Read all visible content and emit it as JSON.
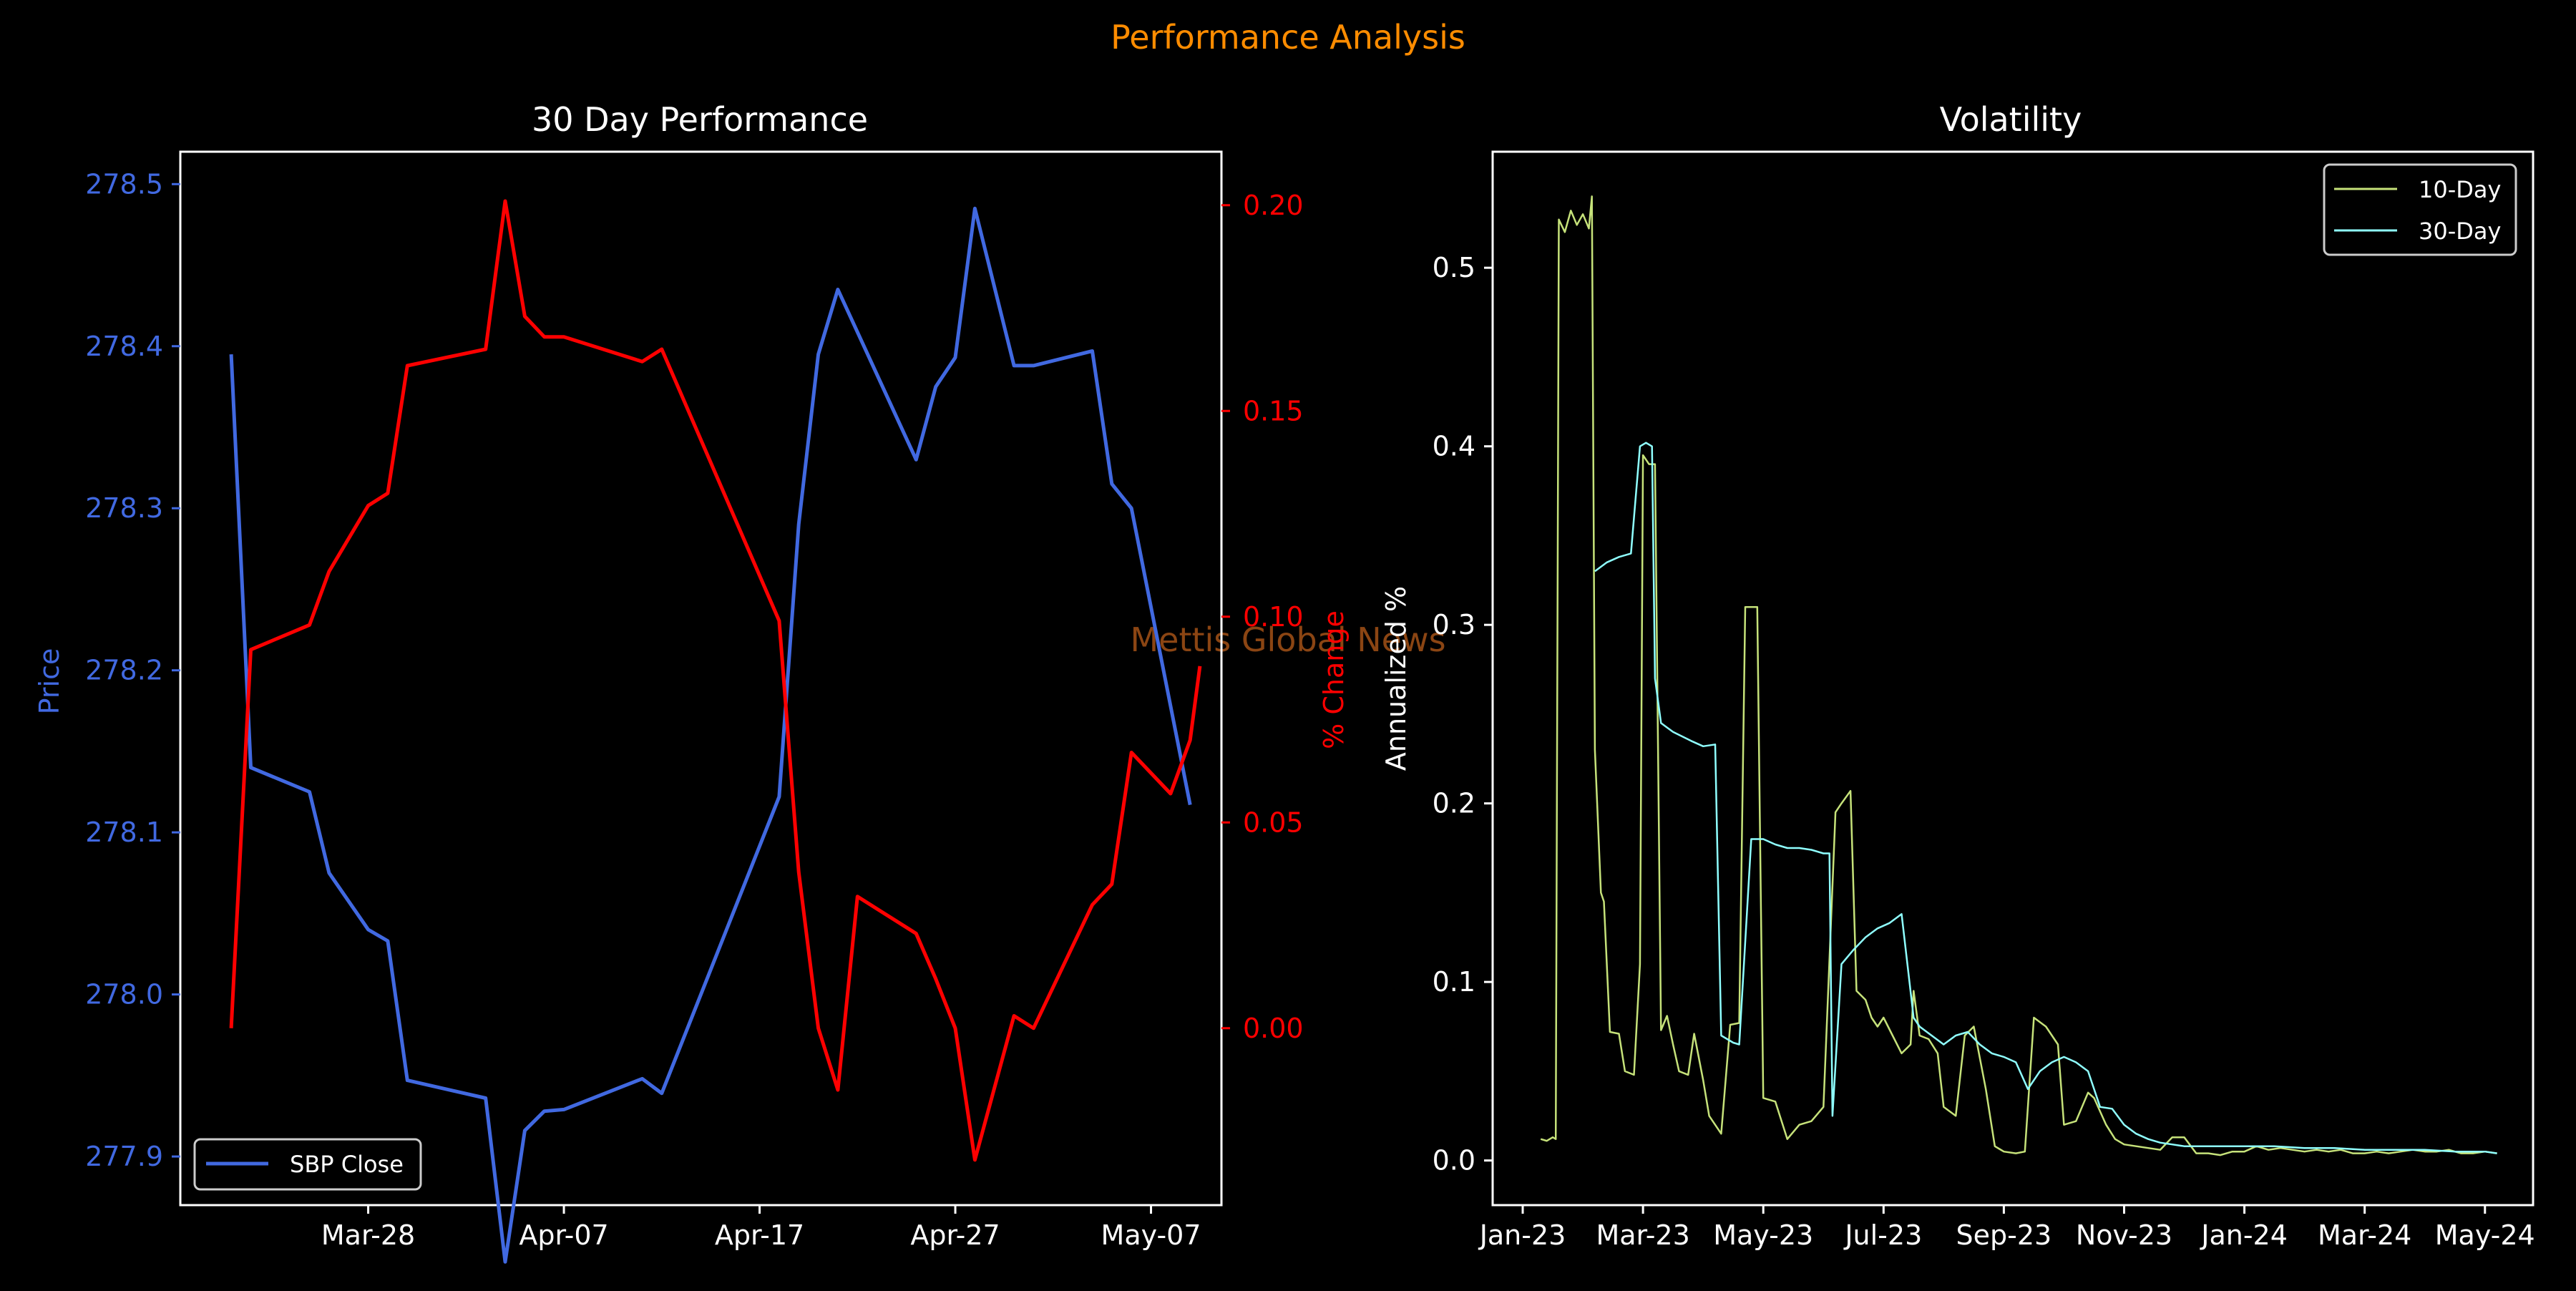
{
  "figure": {
    "title": "Performance Analysis",
    "watermark": "Mettis Global News",
    "title_color": "#ff8c00",
    "watermark_color": "#8b4513"
  },
  "chart_data": [
    {
      "type": "line",
      "title": "30 Day Performance",
      "xlabel": "",
      "ylabel": "Price",
      "ylabel_right": "% Change",
      "x_ticks": [
        "Mar-28",
        "Apr-07",
        "Apr-17",
        "Apr-27",
        "May-07"
      ],
      "y_ticks_left": [
        "277.9",
        "278.0",
        "278.1",
        "278.2",
        "278.3",
        "278.4",
        "278.5"
      ],
      "y_ticks_right": [
        "0.00",
        "0.05",
        "0.10",
        "0.15",
        "0.20"
      ],
      "ylim": [
        277.87,
        278.52
      ],
      "ylim_right": [
        -0.043,
        0.213
      ],
      "xlim": [
        -4.6,
        48.6
      ],
      "grid": false,
      "legend_position": "lower-left",
      "colors": {
        "price": "#4169e1",
        "pct": "#ff0000"
      },
      "series": [
        {
          "name": "SBP Close",
          "axis": "left",
          "color": "#4169e1",
          "x": [
            -2,
            -1,
            2,
            3,
            5,
            6,
            7,
            11,
            12,
            13,
            14,
            15,
            19,
            20,
            26,
            27,
            28,
            29,
            33,
            34,
            35,
            36,
            38,
            39,
            42,
            43,
            44,
            47
          ],
          "values": [
            278.395,
            278.14,
            278.125,
            278.075,
            278.04,
            278.033,
            277.947,
            277.936,
            277.835,
            277.916,
            277.928,
            277.929,
            277.948,
            277.939,
            278.122,
            278.29,
            278.395,
            278.435,
            278.33,
            278.375,
            278.393,
            278.485,
            278.388,
            278.388,
            278.397,
            278.315,
            278.3,
            278.117
          ]
        },
        {
          "name": "% Change",
          "axis": "right",
          "color": "#ff0000",
          "x": [
            -2,
            -1,
            2,
            3,
            5,
            6,
            7,
            11,
            12,
            13,
            14,
            15,
            19,
            20,
            26,
            27,
            28,
            29,
            30,
            33,
            34,
            35,
            36,
            38,
            39,
            42,
            43,
            44,
            46,
            47,
            47.5
          ],
          "values": [
            0.0,
            0.092,
            0.098,
            0.111,
            0.127,
            0.13,
            0.161,
            0.165,
            0.201,
            0.173,
            0.168,
            0.168,
            0.162,
            0.165,
            0.099,
            0.038,
            0.0,
            -0.015,
            0.032,
            0.023,
            0.012,
            0.0,
            -0.032,
            0.003,
            0.0,
            0.03,
            0.035,
            0.067,
            0.057,
            0.07,
            0.088
          ]
        }
      ]
    },
    {
      "type": "line",
      "title": "Volatility",
      "xlabel": "",
      "ylabel": "Annualized %",
      "x_ticks": [
        "Jan-23",
        "Mar-23",
        "May-23",
        "Jul-23",
        "Sep-23",
        "Nov-23",
        "Jan-24",
        "Mar-24",
        "May-24"
      ],
      "y_ticks": [
        "0.0",
        "0.1",
        "0.2",
        "0.3",
        "0.4",
        "0.5"
      ],
      "ylim": [
        -0.025,
        0.565
      ],
      "xlim": [
        -0.5,
        16.8
      ],
      "grid": false,
      "legend_position": "top-right",
      "series": [
        {
          "name": "10-Day",
          "color": "#c6e27a",
          "x": [
            0.3,
            0.4,
            0.5,
            0.55,
            0.6,
            0.7,
            0.8,
            0.9,
            1.0,
            1.1,
            1.15,
            1.2,
            1.3,
            1.35,
            1.45,
            1.6,
            1.7,
            1.85,
            1.95,
            2.0,
            2.1,
            2.2,
            2.3,
            2.4,
            2.5,
            2.6,
            2.75,
            2.85,
            3.0,
            3.1,
            3.3,
            3.45,
            3.6,
            3.7,
            3.8,
            3.9,
            4.0,
            4.2,
            4.4,
            4.6,
            4.8,
            5.0,
            5.2,
            5.3,
            5.45,
            5.55,
            5.7,
            5.8,
            5.9,
            6.0,
            6.15,
            6.3,
            6.45,
            6.5,
            6.6,
            6.75,
            6.9,
            7.0,
            7.2,
            7.35,
            7.5,
            7.7,
            7.85,
            8.0,
            8.2,
            8.35,
            8.5,
            8.7,
            8.9,
            9.0,
            9.2,
            9.4,
            9.5,
            9.7,
            9.85,
            10.0,
            10.2,
            10.4,
            10.6,
            10.8,
            11.0,
            11.2,
            11.4,
            11.6,
            11.8,
            12.0,
            12.2,
            12.4,
            12.6,
            12.8,
            13.0,
            13.2,
            13.4,
            13.6,
            13.8,
            14.0,
            14.2,
            14.4,
            14.6,
            14.8,
            15.0,
            15.2,
            15.4,
            15.6,
            15.8,
            16.0,
            16.2
          ],
          "values": [
            0.012,
            0.011,
            0.013,
            0.012,
            0.527,
            0.52,
            0.532,
            0.524,
            0.53,
            0.522,
            0.54,
            0.23,
            0.15,
            0.145,
            0.072,
            0.071,
            0.05,
            0.048,
            0.11,
            0.395,
            0.39,
            0.39,
            0.073,
            0.081,
            0.065,
            0.05,
            0.048,
            0.071,
            0.045,
            0.025,
            0.015,
            0.076,
            0.077,
            0.31,
            0.31,
            0.31,
            0.035,
            0.033,
            0.012,
            0.02,
            0.022,
            0.03,
            0.195,
            0.2,
            0.207,
            0.095,
            0.09,
            0.08,
            0.075,
            0.08,
            0.07,
            0.06,
            0.065,
            0.095,
            0.07,
            0.068,
            0.06,
            0.03,
            0.025,
            0.07,
            0.075,
            0.04,
            0.008,
            0.005,
            0.004,
            0.005,
            0.08,
            0.075,
            0.065,
            0.02,
            0.022,
            0.038,
            0.035,
            0.02,
            0.012,
            0.009,
            0.008,
            0.007,
            0.006,
            0.013,
            0.013,
            0.004,
            0.004,
            0.003,
            0.005,
            0.005,
            0.008,
            0.006,
            0.007,
            0.006,
            0.005,
            0.006,
            0.005,
            0.006,
            0.004,
            0.004,
            0.005,
            0.004,
            0.005,
            0.006,
            0.005,
            0.005,
            0.006,
            0.004,
            0.004,
            0.005,
            0.004
          ]
        },
        {
          "name": "30-Day",
          "color": "#8fffff",
          "x": [
            1.2,
            1.4,
            1.6,
            1.8,
            1.95,
            2.05,
            2.15,
            2.2,
            2.3,
            2.5,
            2.8,
            3.0,
            3.2,
            3.3,
            3.4,
            3.5,
            3.6,
            3.8,
            4.0,
            4.2,
            4.4,
            4.6,
            4.8,
            5.0,
            5.1,
            5.15,
            5.3,
            5.5,
            5.7,
            5.9,
            6.1,
            6.3,
            6.5,
            6.6,
            6.8,
            7.0,
            7.2,
            7.4,
            7.6,
            7.8,
            8.0,
            8.2,
            8.4,
            8.6,
            8.8,
            9.0,
            9.2,
            9.4,
            9.6,
            9.8,
            10.0,
            10.2,
            10.4,
            10.6,
            10.8,
            11.0,
            11.5,
            12.0,
            12.5,
            13.0,
            13.5,
            14.0,
            14.5,
            15.0,
            15.5,
            16.0,
            16.2
          ],
          "values": [
            0.33,
            0.335,
            0.338,
            0.34,
            0.4,
            0.402,
            0.4,
            0.27,
            0.245,
            0.24,
            0.235,
            0.232,
            0.233,
            0.07,
            0.068,
            0.066,
            0.065,
            0.18,
            0.18,
            0.177,
            0.175,
            0.175,
            0.174,
            0.172,
            0.172,
            0.025,
            0.11,
            0.118,
            0.125,
            0.13,
            0.133,
            0.138,
            0.08,
            0.075,
            0.07,
            0.065,
            0.07,
            0.072,
            0.065,
            0.06,
            0.058,
            0.055,
            0.04,
            0.05,
            0.055,
            0.058,
            0.055,
            0.05,
            0.03,
            0.029,
            0.02,
            0.015,
            0.012,
            0.01,
            0.009,
            0.008,
            0.008,
            0.008,
            0.008,
            0.007,
            0.007,
            0.006,
            0.006,
            0.006,
            0.005,
            0.005,
            0.004
          ]
        }
      ]
    }
  ]
}
